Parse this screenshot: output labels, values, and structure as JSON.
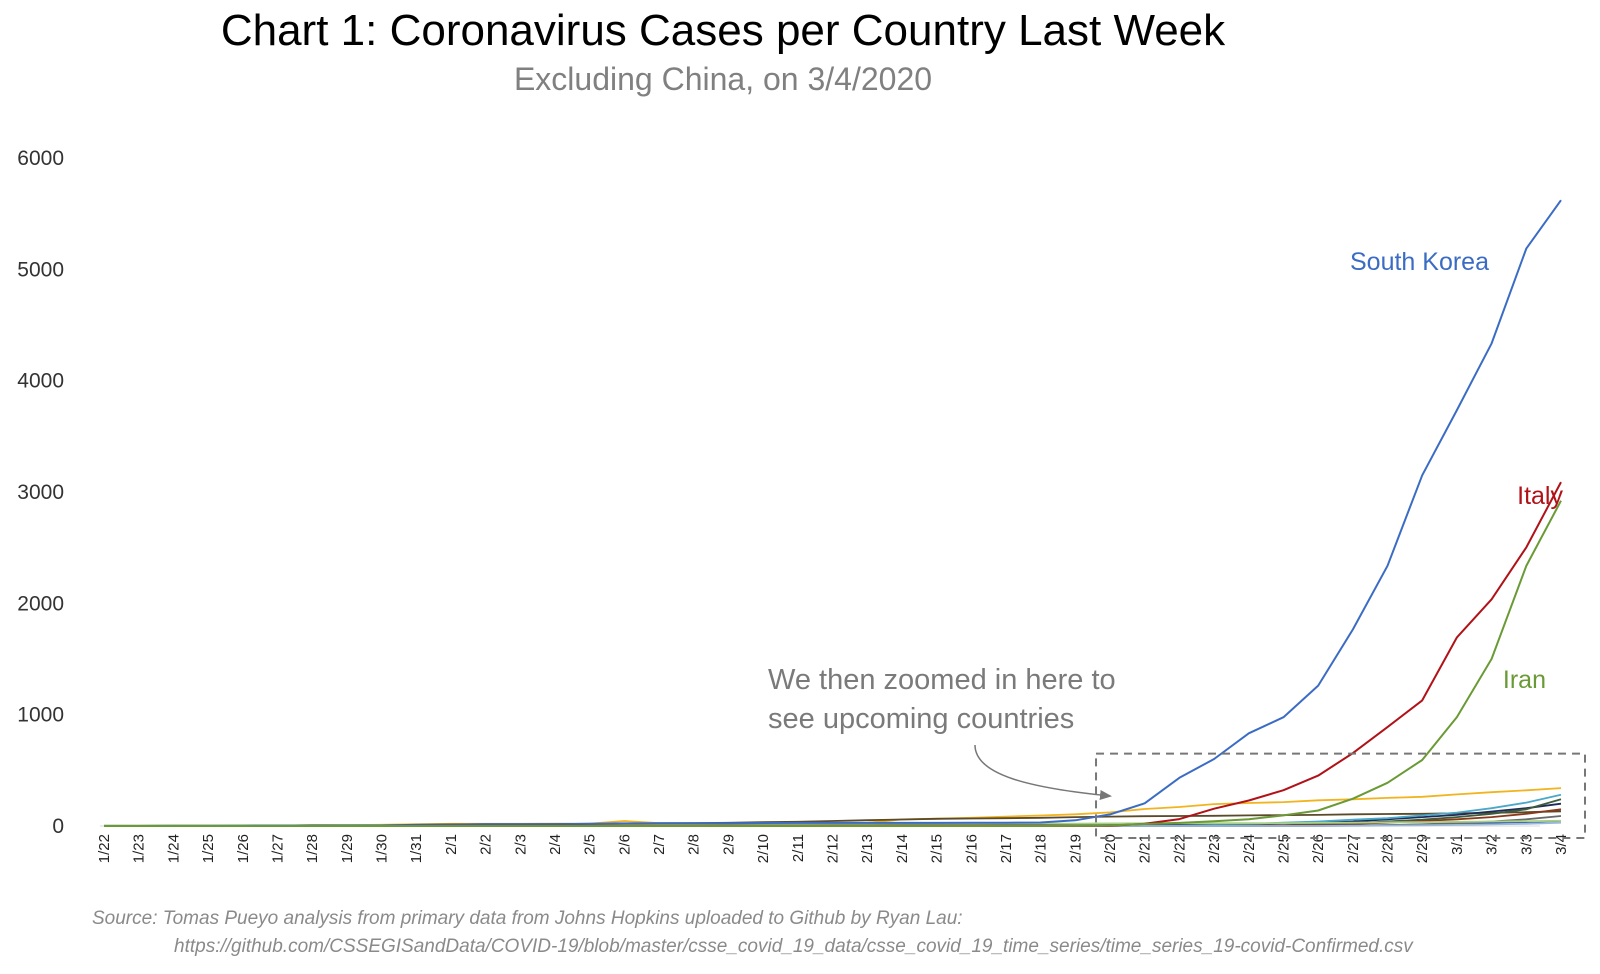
{
  "title": "Chart 1: Coronavirus Cases per Country Last Week",
  "subtitle": "Excluding China, on 3/4/2020",
  "annotation": {
    "line1": "We then zoomed in here to",
    "line2": "see upcoming countries"
  },
  "source": {
    "line1": "Source: Tomas Pueyo analysis from primary data from Johns Hopkins uploaded to Github by Ryan Lau:",
    "line2": "https://github.com/CSSEGISandData/COVID-19/blob/master/csse_covid_19_data/csse_covid_19_time_series/time_series_19-covid-Confirmed.csv"
  },
  "chart_data": {
    "type": "line",
    "title": "Chart 1: Coronavirus Cases per Country Last Week",
    "subtitle": "Excluding China, on 3/4/2020",
    "xlabel": "",
    "ylabel": "",
    "ylim": [
      0,
      6000
    ],
    "yticks": [
      0,
      1000,
      2000,
      3000,
      4000,
      5000,
      6000
    ],
    "grid": false,
    "legend": "direct labels",
    "categories": [
      "1/22",
      "1/23",
      "1/24",
      "1/25",
      "1/26",
      "1/27",
      "1/28",
      "1/29",
      "1/30",
      "1/31",
      "2/1",
      "2/2",
      "2/3",
      "2/4",
      "2/5",
      "2/6",
      "2/7",
      "2/8",
      "2/9",
      "2/10",
      "2/11",
      "2/12",
      "2/13",
      "2/14",
      "2/15",
      "2/16",
      "2/17",
      "2/18",
      "2/19",
      "2/20",
      "2/21",
      "2/22",
      "2/23",
      "2/24",
      "2/25",
      "2/26",
      "2/27",
      "2/28",
      "2/29",
      "3/1",
      "3/2",
      "3/3",
      "3/4"
    ],
    "zoom_box": {
      "x_from": "2/20",
      "x_to": "3/4",
      "y_from": 0,
      "y_to": 650
    },
    "series": [
      {
        "name": "South Korea",
        "color": "#3b6cc4",
        "labeled": true,
        "values": [
          1,
          1,
          2,
          2,
          3,
          4,
          4,
          4,
          4,
          11,
          12,
          15,
          15,
          16,
          19,
          23,
          24,
          24,
          25,
          27,
          28,
          28,
          28,
          28,
          28,
          29,
          30,
          31,
          51,
          104,
          204,
          433,
          602,
          833,
          977,
          1261,
          1766,
          2337,
          3150,
          3736,
          4335,
          5186,
          5621
        ]
      },
      {
        "name": "Italy",
        "color": "#b01217",
        "labeled": true,
        "values": [
          0,
          0,
          0,
          0,
          0,
          0,
          0,
          0,
          0,
          2,
          2,
          2,
          2,
          2,
          2,
          2,
          3,
          3,
          3,
          3,
          3,
          3,
          3,
          3,
          3,
          3,
          3,
          3,
          3,
          3,
          20,
          62,
          155,
          229,
          322,
          453,
          655,
          888,
          1128,
          1694,
          2036,
          2502,
          3089
        ]
      },
      {
        "name": "Iran",
        "color": "#6a9a35",
        "labeled": true,
        "values": [
          0,
          0,
          0,
          0,
          0,
          0,
          0,
          0,
          0,
          0,
          0,
          0,
          0,
          0,
          0,
          0,
          0,
          0,
          0,
          0,
          0,
          0,
          0,
          0,
          0,
          0,
          0,
          0,
          2,
          5,
          18,
          28,
          43,
          61,
          95,
          139,
          245,
          388,
          593,
          978,
          1501,
          2336,
          2922
        ]
      },
      {
        "name": "",
        "color": "#f2b41e",
        "labeled": false,
        "values": [
          2,
          2,
          2,
          2,
          4,
          4,
          7,
          7,
          11,
          15,
          20,
          20,
          20,
          22,
          22,
          45,
          25,
          25,
          26,
          26,
          26,
          28,
          29,
          59,
          66,
          74,
          84,
          94,
          105,
          122,
          153,
          171,
          197,
          207,
          215,
          231,
          240,
          252,
          262,
          284,
          304,
          321,
          340
        ]
      },
      {
        "name": "",
        "color": "#5a4a2a",
        "labeled": false,
        "values": [
          1,
          1,
          2,
          2,
          3,
          4,
          7,
          7,
          7,
          10,
          14,
          16,
          17,
          18,
          20,
          20,
          24,
          25,
          29,
          35,
          38,
          45,
          52,
          58,
          65,
          67,
          70,
          74,
          80,
          84,
          88,
          90,
          92,
          95,
          98,
          100,
          105,
          108,
          110,
          114,
          118,
          124,
          132
        ]
      },
      {
        "name": "",
        "color": "#1e2a5a",
        "labeled": false,
        "values": [
          0,
          0,
          0,
          0,
          0,
          0,
          0,
          0,
          1,
          1,
          1,
          1,
          2,
          2,
          3,
          3,
          4,
          4,
          5,
          5,
          6,
          7,
          8,
          8,
          9,
          10,
          11,
          11,
          11,
          12,
          14,
          16,
          18,
          20,
          25,
          30,
          40,
          60,
          80,
          100,
          130,
          160,
          200
        ]
      },
      {
        "name": "",
        "color": "#4aa8c8",
        "labeled": false,
        "values": [
          0,
          0,
          0,
          0,
          0,
          0,
          0,
          0,
          0,
          0,
          0,
          0,
          0,
          0,
          0,
          0,
          0,
          0,
          0,
          0,
          0,
          0,
          0,
          0,
          0,
          0,
          0,
          0,
          0,
          0,
          2,
          4,
          10,
          18,
          30,
          40,
          57,
          70,
          95,
          120,
          160,
          210,
          280
        ]
      },
      {
        "name": "",
        "color": "#3d5c3a",
        "labeled": false,
        "values": [
          0,
          0,
          0,
          0,
          0,
          0,
          0,
          0,
          0,
          0,
          0,
          0,
          0,
          0,
          0,
          0,
          0,
          0,
          0,
          0,
          0,
          0,
          0,
          0,
          0,
          0,
          0,
          0,
          0,
          0,
          1,
          2,
          3,
          5,
          8,
          15,
          25,
          40,
          57,
          80,
          110,
          150,
          240
        ]
      },
      {
        "name": "",
        "color": "#8a3a1a",
        "labeled": false,
        "values": [
          0,
          0,
          0,
          0,
          0,
          0,
          0,
          0,
          0,
          0,
          0,
          0,
          0,
          0,
          0,
          0,
          0,
          0,
          0,
          0,
          0,
          0,
          0,
          0,
          0,
          0,
          0,
          0,
          0,
          0,
          0,
          0,
          0,
          2,
          5,
          10,
          20,
          30,
          45,
          60,
          80,
          110,
          150
        ]
      },
      {
        "name": "",
        "color": "#2a55a8",
        "labeled": false,
        "values": [
          0,
          0,
          0,
          0,
          0,
          0,
          0,
          0,
          0,
          0,
          0,
          0,
          0,
          0,
          0,
          0,
          0,
          0,
          0,
          0,
          0,
          0,
          0,
          0,
          0,
          0,
          0,
          0,
          0,
          0,
          0,
          0,
          0,
          0,
          1,
          3,
          5,
          8,
          12,
          18,
          30,
          35,
          45
        ]
      },
      {
        "name": "",
        "color": "#6a6a6a",
        "labeled": false,
        "values": [
          0,
          0,
          0,
          0,
          0,
          0,
          0,
          0,
          0,
          0,
          0,
          0,
          0,
          0,
          0,
          0,
          0,
          0,
          0,
          0,
          0,
          0,
          0,
          0,
          0,
          0,
          0,
          0,
          0,
          0,
          0,
          0,
          0,
          0,
          0,
          2,
          4,
          8,
          15,
          25,
          40,
          60,
          90
        ]
      },
      {
        "name": "",
        "color": "#9ab8d8",
        "labeled": false,
        "values": [
          0,
          0,
          0,
          0,
          0,
          0,
          0,
          0,
          0,
          0,
          0,
          0,
          0,
          0,
          0,
          0,
          0,
          0,
          0,
          0,
          0,
          0,
          0,
          0,
          0,
          0,
          0,
          0,
          0,
          0,
          0,
          0,
          0,
          0,
          0,
          0,
          2,
          4,
          6,
          10,
          14,
          20,
          30
        ]
      },
      {
        "name": "",
        "color": "#a8d08a",
        "labeled": false,
        "values": [
          4,
          4,
          5,
          5,
          6,
          6,
          6,
          8,
          8,
          8,
          9,
          9,
          10,
          10,
          12,
          15,
          15,
          18,
          18,
          18,
          18,
          20,
          20,
          21,
          21,
          21,
          22,
          22,
          22,
          23,
          24,
          25,
          25,
          25,
          26,
          28,
          30,
          32,
          35,
          38,
          40,
          43,
          47
        ]
      }
    ],
    "series_labels": {
      "South Korea": {
        "text": "South Korea"
      },
      "Italy": {
        "text": "Italy"
      },
      "Iran": {
        "text": "Iran"
      }
    }
  }
}
